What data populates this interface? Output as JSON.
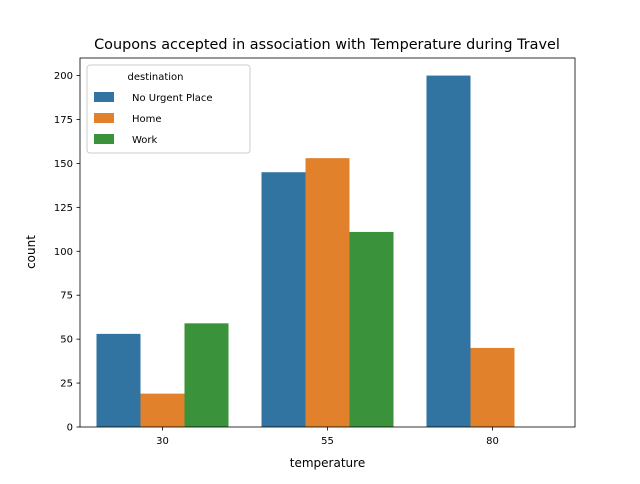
{
  "chart_data": {
    "type": "bar",
    "title": "Coupons accepted in association with Temperature during Travel",
    "xlabel": "temperature",
    "ylabel": "count",
    "categories": [
      "30",
      "55",
      "80"
    ],
    "ylim": [
      0,
      210
    ],
    "yticks": [
      0,
      25,
      50,
      75,
      100,
      125,
      150,
      175,
      200
    ],
    "grid": false,
    "legend": {
      "title": "destination",
      "placement": "top-left"
    },
    "series": [
      {
        "name": "No Urgent Place",
        "color": "#3274a1",
        "values": [
          53,
          145,
          200
        ]
      },
      {
        "name": "Home",
        "color": "#e1812c",
        "values": [
          19,
          153,
          45
        ]
      },
      {
        "name": "Work",
        "color": "#3a923a",
        "values": [
          59,
          111,
          0
        ]
      }
    ]
  }
}
